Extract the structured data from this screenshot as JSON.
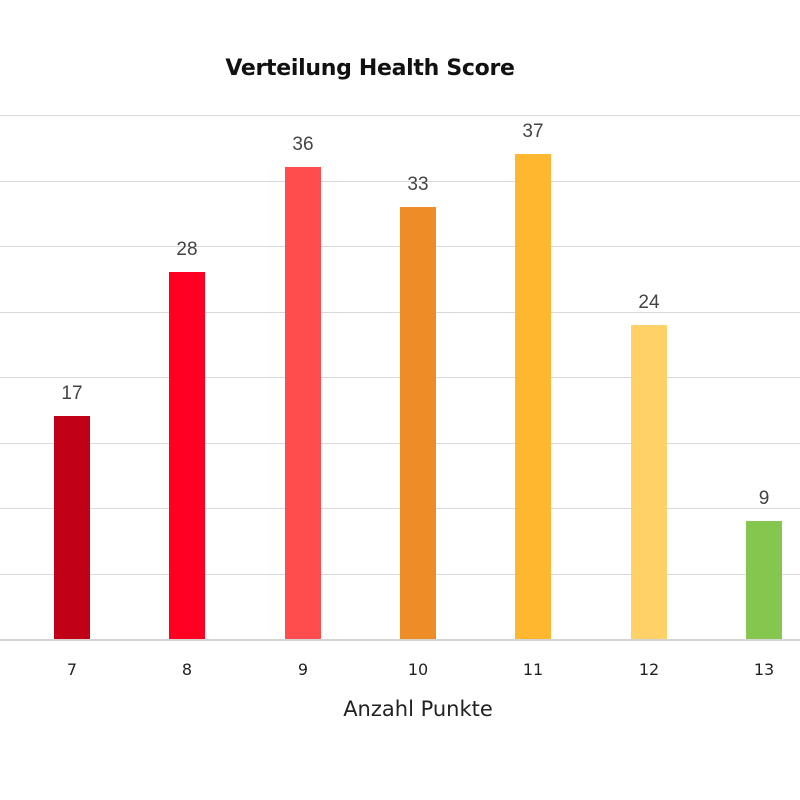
{
  "chart_data": {
    "type": "bar",
    "title": "Verteilung Health Score",
    "xlabel": "Anzahl Punkte",
    "ylabel": "",
    "categories": [
      "7",
      "8",
      "9",
      "10",
      "11",
      "12",
      "13"
    ],
    "values": [
      17,
      28,
      36,
      33,
      37,
      24,
      9
    ],
    "colors": [
      "#C00017",
      "#FF0022",
      "#FF4D4D",
      "#EE8C25",
      "#FEB72F",
      "#FFD166",
      "#85C74E"
    ],
    "ylim": [
      0,
      40
    ],
    "y_gridlines": [
      5,
      10,
      15,
      20,
      25,
      30,
      35,
      40
    ],
    "grid": true,
    "legend": null,
    "data_labels": true
  },
  "labels": {
    "title": "Verteilung Health Score",
    "xlabel": "Anzahl Punkte",
    "categories": [
      "7",
      "8",
      "9",
      "10",
      "11",
      "12",
      "13"
    ],
    "values": [
      "17",
      "28",
      "36",
      "33",
      "37",
      "24",
      "9"
    ]
  }
}
